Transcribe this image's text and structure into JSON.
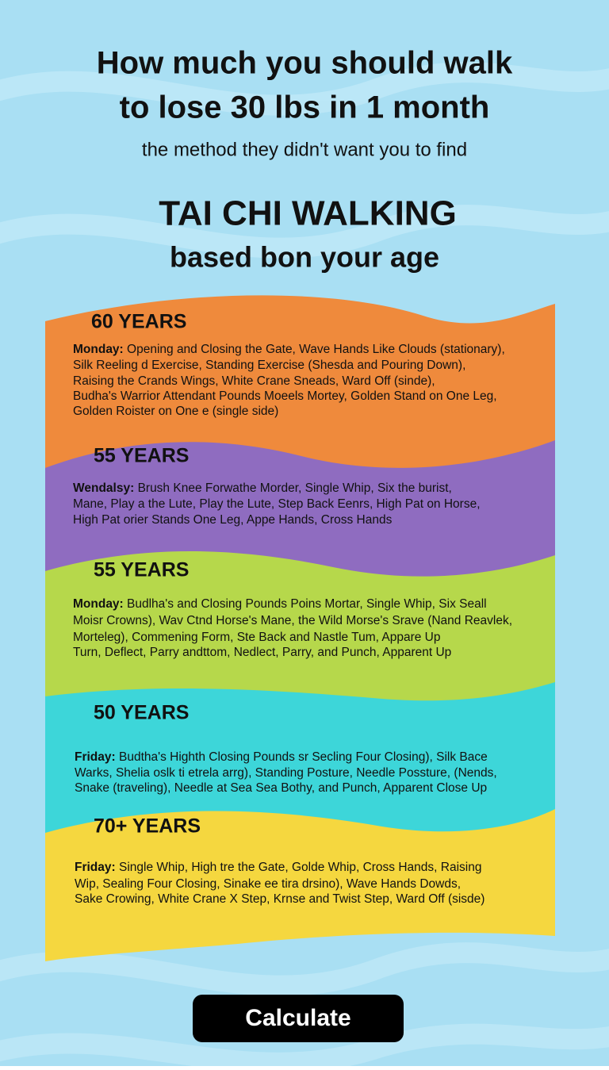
{
  "header": {
    "title_lines": [
      "How much you should walk",
      "to lose 30 lbs in 1 month"
    ],
    "subtitle": "the method they didn't want you to find",
    "heading": "TAI CHI WALKING",
    "subheading": "based bon your age"
  },
  "sections": [
    {
      "age": "60 YEARS",
      "day": "Monday:",
      "lines": [
        "Opening and Closing the Gate, Wave Hands Like Clouds (stationary),",
        "Silk Reeling d Exercise, Standing Exercise (Shesda and Pouring Down),",
        "Raising the Crands Wings, White Crane Sneads, Ward Off (sinde),",
        "Budha's Warrior Attendant Pounds Moeels Mortey, Golden Stand on One Leg,",
        "Golden Roister on One e (single side)"
      ]
    },
    {
      "age": "55 YEARS",
      "day": "Wendalsy:",
      "lines": [
        "Brush Knee Forwathe Morder, Single Whip, Six the burist,",
        "Mane, Play a the Lute, Play the Lute, Step Back Eenrs, High Pat on Horse,",
        "High Pat orier Stands One Leg, Appe Hands, Cross Hands"
      ]
    },
    {
      "age": "55 YEARS",
      "day": "Monday:",
      "lines": [
        "Budlha's and Closing Pounds Poins Mortar, Single Whip, Six Seall",
        "Moisr Crowns), Wav Ctnd Horse's Mane, the Wild Morse's Srave (Nand Reavlek,",
        "Morteleg), Commening Form, Ste Back and Nastle Tum, Appare Up",
        "Turn, Deflect, Parry andttom, Nedlect, Parry, and Punch, Apparent Up"
      ]
    },
    {
      "age": "50 YEARS",
      "day": "Friday:",
      "lines": [
        "Budtha's Highth Closing Pounds sr Secling Four Closing), Silk Bace",
        "Warks, Shelia oslk ti etrela arrg), Standing Posture, Needle Possture, (Nends,",
        "Snake (traveling), Needle at Sea Sea Bothy, and Punch, Apparent Close Up"
      ]
    },
    {
      "age": "70+ YEARS",
      "day": "Friday:",
      "lines": [
        "Single Whip, High tre the Gate, Golde Whip, Cross Hands, Raising",
        "Wip, Sealing Four Closing, Sinake ee tira drsino), Wave Hands Dowds,",
        "Sake Crowing, White Crane X Step, Krnse and Twist Step, Ward Off (sisde)"
      ]
    }
  ],
  "button": "Calculate"
}
